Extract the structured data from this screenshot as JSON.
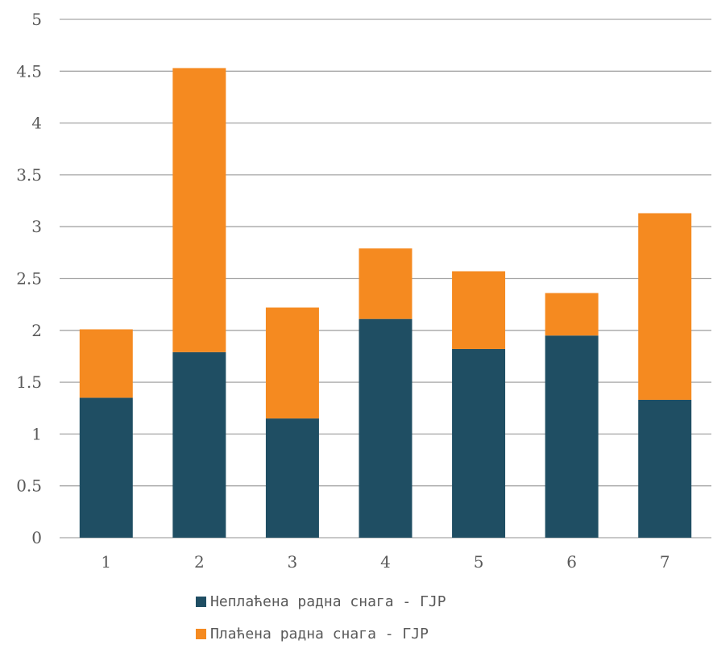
{
  "chart_data": {
    "type": "bar",
    "stacked": true,
    "categories": [
      "1",
      "2",
      "3",
      "4",
      "5",
      "6",
      "7"
    ],
    "series": [
      {
        "name": "Неплаћена радна снага - ГЈР",
        "color": "#1f4e63",
        "values": [
          1.35,
          1.79,
          1.15,
          2.11,
          1.82,
          1.95,
          1.33
        ]
      },
      {
        "name": "Плаћена радна снага - ГЈР",
        "color": "#f58a20",
        "values": [
          0.66,
          2.74,
          1.07,
          0.68,
          0.75,
          0.41,
          1.8
        ]
      }
    ],
    "ylim": [
      0,
      5
    ],
    "yticks": [
      "0",
      "0.5",
      "1",
      "1.5",
      "2",
      "2.5",
      "3",
      "3.5",
      "4",
      "4.5",
      "5"
    ],
    "grid": true,
    "legend_position": "bottom"
  }
}
